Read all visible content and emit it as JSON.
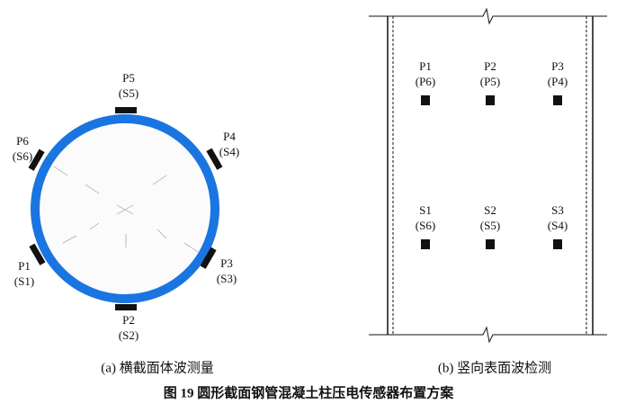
{
  "left": {
    "caption": "(a) 横截面体波测量",
    "sensors": [
      {
        "name": "P5",
        "pair": "(S5)"
      },
      {
        "name": "P4",
        "pair": "(S4)"
      },
      {
        "name": "P3",
        "pair": "(S3)"
      },
      {
        "name": "P2",
        "pair": "(S2)"
      },
      {
        "name": "P1",
        "pair": "(S1)"
      },
      {
        "name": "P6",
        "pair": "(S6)"
      }
    ]
  },
  "right": {
    "caption": "(b) 竖向表面波检测",
    "sensors": [
      {
        "name": "P1",
        "pair": "(P6)"
      },
      {
        "name": "P2",
        "pair": "(P5)"
      },
      {
        "name": "P3",
        "pair": "(P4)"
      },
      {
        "name": "S1",
        "pair": "(S6)"
      },
      {
        "name": "S2",
        "pair": "(S5)"
      },
      {
        "name": "S3",
        "pair": "(S4)"
      }
    ]
  },
  "figure_caption": "图 19 圆形截面钢管混凝土柱压电传感器布置方案"
}
